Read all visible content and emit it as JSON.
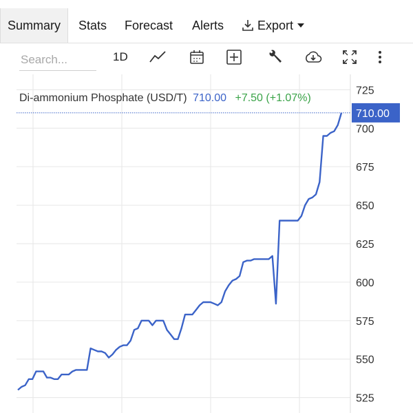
{
  "tabs": [
    {
      "label": "Summary",
      "active": true
    },
    {
      "label": "Stats"
    },
    {
      "label": "Forecast"
    },
    {
      "label": "Alerts"
    },
    {
      "label": "Export"
    }
  ],
  "toolbar": {
    "search_placeholder": "Search...",
    "interval": "1D",
    "icons": [
      "line-chart-icon",
      "calendar-icon",
      "add-icon",
      "wrench-icon",
      "cloud-download-icon",
      "fullscreen-icon",
      "more-vert-icon"
    ]
  },
  "legend": {
    "name": "Di-ammonium Phosphate (USD/T)",
    "price": "710.00",
    "change": "+7.50 (+1.07%)"
  },
  "colors": {
    "line": "#3b63c8",
    "positive": "#3aa348",
    "price_tag_bg": "#3b63c8",
    "grid": "#e6e6e6"
  },
  "chart_data": {
    "type": "line",
    "title": "Di-ammonium Phosphate (USD/T)",
    "y_ticks": [
      525,
      550,
      575,
      600,
      625,
      650,
      675,
      700,
      725
    ],
    "ylim": [
      515,
      735
    ],
    "last_price_label": "710.00",
    "last_value": 710,
    "series": [
      {
        "values": [
          530,
          532,
          533,
          537,
          537,
          542,
          542,
          542,
          538,
          538,
          537,
          537,
          540,
          540,
          540,
          542,
          543,
          543,
          543,
          543,
          557,
          556,
          555,
          555,
          554,
          551,
          553,
          556,
          558,
          559,
          559,
          562,
          569,
          570,
          575,
          575,
          575,
          572,
          575,
          575,
          575,
          569,
          566,
          563,
          563,
          570,
          579,
          579,
          579,
          582,
          585,
          587,
          587,
          587,
          586,
          585,
          587,
          594,
          598,
          601,
          602,
          604,
          613,
          614,
          614,
          615,
          615,
          615,
          615,
          615,
          617,
          586,
          640,
          640,
          640,
          640,
          640,
          640,
          643,
          650,
          654,
          655,
          657,
          665,
          695,
          695,
          697,
          698,
          702,
          710
        ]
      }
    ]
  }
}
